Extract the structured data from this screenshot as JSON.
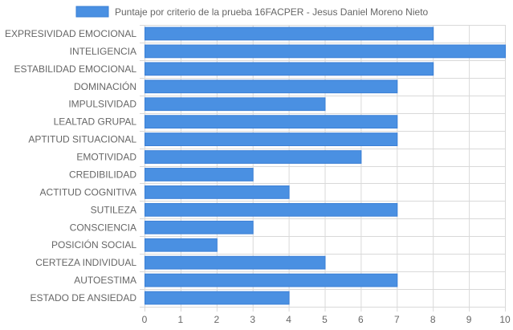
{
  "chart_data": {
    "type": "bar",
    "orientation": "horizontal",
    "legend": {
      "label": "Puntaje por criterio de la prueba 16FACPER - Jesus Daniel Moreno Nieto",
      "position": "top"
    },
    "categories": [
      "EXPRESIVIDAD EMOCIONAL",
      "INTELIGENCIA",
      "ESTABILIDAD EMOCIONAL",
      "DOMINACIÓN",
      "IMPULSIVIDAD",
      "LEALTAD GRUPAL",
      "APTITUD SITUACIONAL",
      "EMOTIVIDAD",
      "CREDIBILIDAD",
      "ACTITUD COGNITIVA",
      "SUTILEZA",
      "CONSCIENCIA",
      "POSICIÓN SOCIAL",
      "CERTEZA INDIVIDUAL",
      "AUTOESTIMA",
      "ESTADO DE ANSIEDAD"
    ],
    "series": [
      {
        "name": "Puntaje por criterio de la prueba 16FACPER - Jesus Daniel Moreno Nieto",
        "values": [
          8,
          10,
          8,
          7,
          5,
          7,
          7,
          6,
          3,
          4,
          7,
          3,
          2,
          5,
          7,
          4
        ]
      }
    ],
    "xlim": [
      0,
      10
    ],
    "xticks": [
      "0",
      "1",
      "2",
      "3",
      "4",
      "5",
      "6",
      "7",
      "8",
      "9",
      "10"
    ],
    "grid": true,
    "colors": {
      "bar_fill": "#4a90e2",
      "bar_stroke": "#3a7fd6",
      "grid": "#d9d9d9",
      "text": "#666666"
    }
  }
}
